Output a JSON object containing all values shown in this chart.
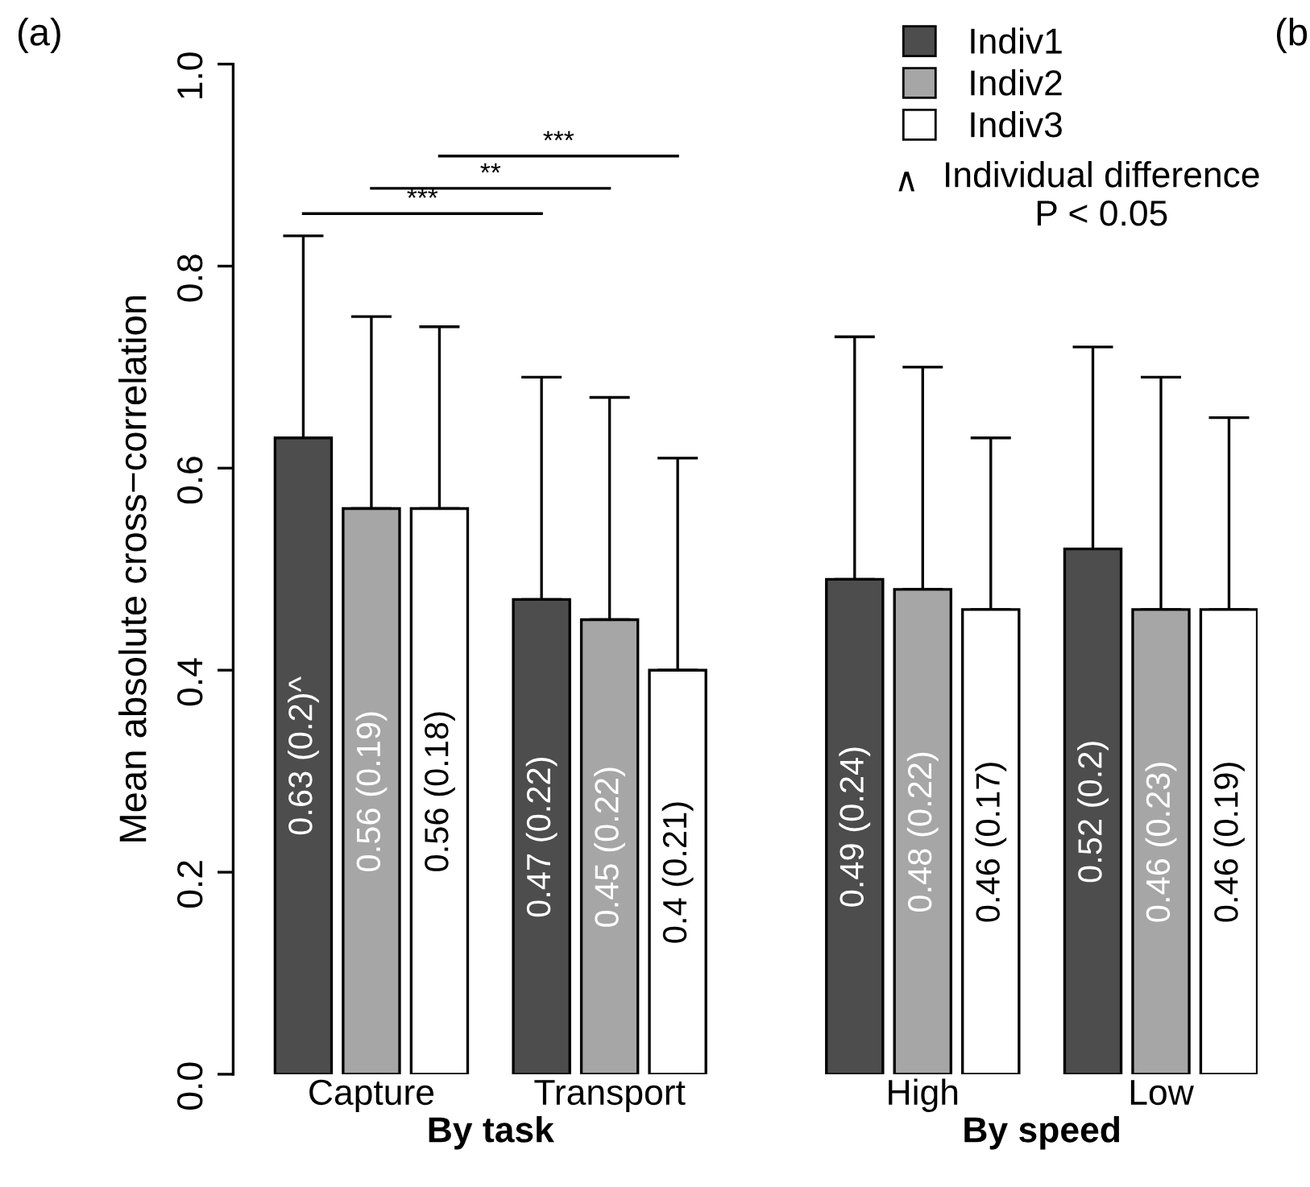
{
  "chart_data": {
    "type": "bar",
    "ylabel": "Mean absolute cross−correlation",
    "categories": [
      "Capture",
      "Transport",
      "High",
      "Low"
    ],
    "series": [
      {
        "name": "Indiv1",
        "color": "#4d4d4d",
        "values": [
          0.63,
          0.47,
          0.49,
          0.52
        ],
        "errors": [
          [
            0.63,
            0.83
          ],
          [
            0.47,
            0.69
          ],
          [
            0.49,
            0.73
          ],
          [
            0.52,
            0.72
          ]
        ],
        "value_labels": [
          "0.63 (0.2)^",
          "0.47 (0.22)",
          "0.49 (0.24)",
          "0.52 (0.2)"
        ]
      },
      {
        "name": "Indiv2",
        "color": "#a6a6a6",
        "values": [
          0.56,
          0.45,
          0.48,
          0.46
        ],
        "errors": [
          [
            0.56,
            0.75
          ],
          [
            0.45,
            0.67
          ],
          [
            0.48,
            0.7
          ],
          [
            0.46,
            0.69
          ]
        ],
        "value_labels": [
          "0.56 (0.19)",
          "0.45 (0.22)",
          "0.48 (0.22)",
          "0.46 (0.23)"
        ]
      },
      {
        "name": "Indiv3",
        "color": "#ffffff",
        "values": [
          0.56,
          0.4,
          0.46,
          0.46
        ],
        "errors": [
          [
            0.56,
            0.74
          ],
          [
            0.4,
            0.61
          ],
          [
            0.46,
            0.63
          ],
          [
            0.46,
            0.65
          ]
        ],
        "value_labels": [
          "0.56 (0.18)",
          "0.4 (0.21)",
          "0.46 (0.17)",
          "0.46 (0.19)"
        ]
      }
    ],
    "ylim": [
      0,
      1
    ],
    "yticks": [
      {
        "value": 0,
        "label": "0.0"
      },
      0.2,
      0.4,
      0.6,
      0.8,
      {
        "value": 1,
        "label": "1.0"
      }
    ],
    "legend": "top right",
    "grid": false,
    "annotations": [
      "(a)",
      "(b",
      "***",
      "**",
      "***",
      "By task",
      "By speed",
      "∧",
      "Individual difference\nP < 0.05"
    ]
  }
}
